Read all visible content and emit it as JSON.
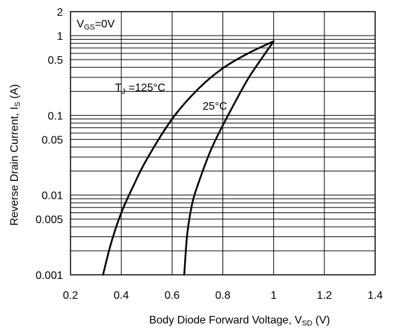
{
  "chart_data": {
    "type": "line",
    "title": "",
    "xlabel": {
      "main": "Body Diode Forward Voltage, V",
      "sub": "SD",
      "unit": " (V)"
    },
    "ylabel": {
      "main": "Reverse Drain Current, I",
      "sub": "S",
      "unit": " (A)"
    },
    "x_scale": "linear",
    "y_scale": "log",
    "xlim": [
      0.2,
      1.4
    ],
    "ylim": [
      0.001,
      2
    ],
    "x_ticks": [
      0.2,
      0.4,
      0.6,
      0.8,
      1.0,
      1.2,
      1.4
    ],
    "x_tick_labels": [
      "0.2",
      "0.4",
      "0.6",
      "0.8",
      "1",
      "1.2",
      "1.4"
    ],
    "y_ticks": [
      0.001,
      0.005,
      0.01,
      0.05,
      0.1,
      0.5,
      1,
      2
    ],
    "y_tick_labels": [
      "0.001",
      "0.005",
      "0.01",
      "0.05",
      "0.1",
      "0.5",
      "1",
      "2"
    ],
    "grid": true,
    "condition_label": {
      "main": "V",
      "sub": "GS",
      "rest": "=0V"
    },
    "series": [
      {
        "label": {
          "main": "T",
          "sub": "J",
          "rest": " =125°C"
        },
        "x": [
          0.328,
          0.36,
          0.4,
          0.45,
          0.5,
          0.6,
          0.7,
          0.8,
          0.9,
          1.0
        ],
        "y": [
          0.001,
          0.0025,
          0.006,
          0.0135,
          0.028,
          0.09,
          0.21,
          0.39,
          0.6,
          0.85
        ]
      },
      {
        "label": {
          "main": "25°C",
          "sub": "",
          "rest": ""
        },
        "x": [
          0.648,
          0.66,
          0.68,
          0.7,
          0.75,
          0.8,
          0.85,
          0.9,
          0.95,
          1.0
        ],
        "y": [
          0.001,
          0.0033,
          0.008,
          0.013,
          0.035,
          0.075,
          0.15,
          0.29,
          0.5,
          0.85
        ]
      }
    ]
  }
}
